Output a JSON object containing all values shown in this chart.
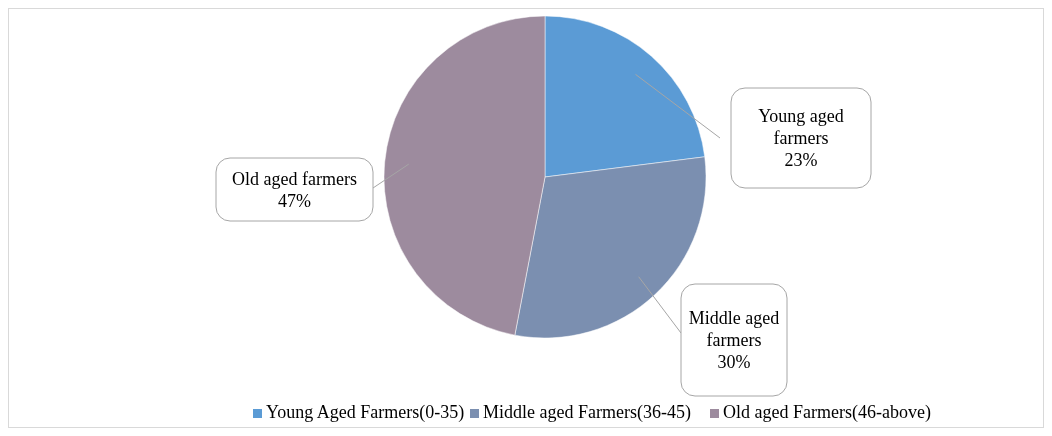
{
  "chart_data": {
    "type": "pie",
    "categories": [
      "Young Aged Farmers(0-35)",
      "Middle aged Farmers(36-45)",
      "Old aged Farmers(46-above)"
    ],
    "values": [
      23,
      30,
      47
    ],
    "colors": [
      "#5b9bd5",
      "#7b8fb0",
      "#9d8b9e"
    ],
    "value_labels": [
      "Young aged\nfarmers\n23%",
      "Middle aged\nfarmers\n30%",
      "Old aged farmers\n47%"
    ],
    "legend": "bottom"
  }
}
